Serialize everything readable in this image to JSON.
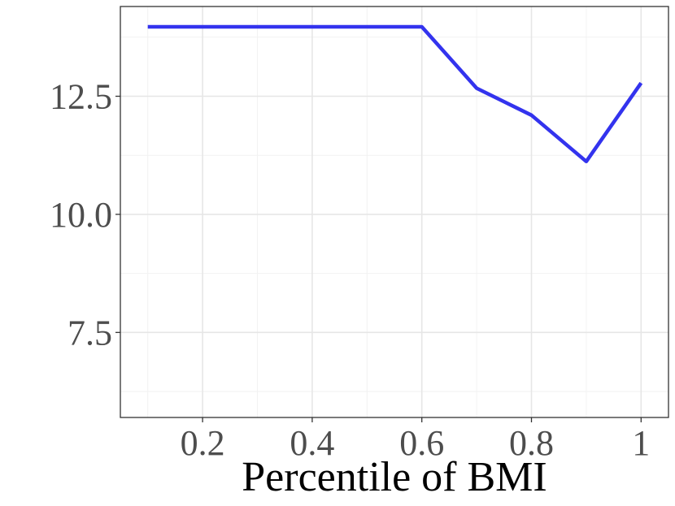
{
  "chart_data": {
    "type": "line",
    "title": "",
    "xlabel": "Percentile of BMI",
    "ylabel": "",
    "xlim": [
      0.05,
      1.05
    ],
    "ylim": [
      5.7,
      14.4
    ],
    "x_ticks": [
      0.2,
      0.4,
      0.6,
      0.8,
      1.0
    ],
    "x_tick_labels": [
      "0.2",
      "0.4",
      "0.6",
      "0.8",
      "1"
    ],
    "x_minor_ticks": [
      0.1,
      0.3,
      0.5,
      0.7,
      0.9
    ],
    "y_ticks": [
      7.5,
      10.0,
      12.5
    ],
    "y_tick_labels": [
      "7.5",
      "10.0",
      "12.5"
    ],
    "y_minor_ticks": [
      6.25,
      8.75,
      11.25,
      13.75
    ],
    "grid": true,
    "legend": "none",
    "series": [
      {
        "color": "#3333ee",
        "x": [
          0.1,
          0.2,
          0.3,
          0.4,
          0.5,
          0.6,
          0.7,
          0.8,
          0.9,
          1.0
        ],
        "y": [
          13.97,
          13.97,
          13.97,
          13.97,
          13.97,
          13.97,
          12.67,
          12.1,
          11.12,
          12.78
        ]
      }
    ]
  }
}
